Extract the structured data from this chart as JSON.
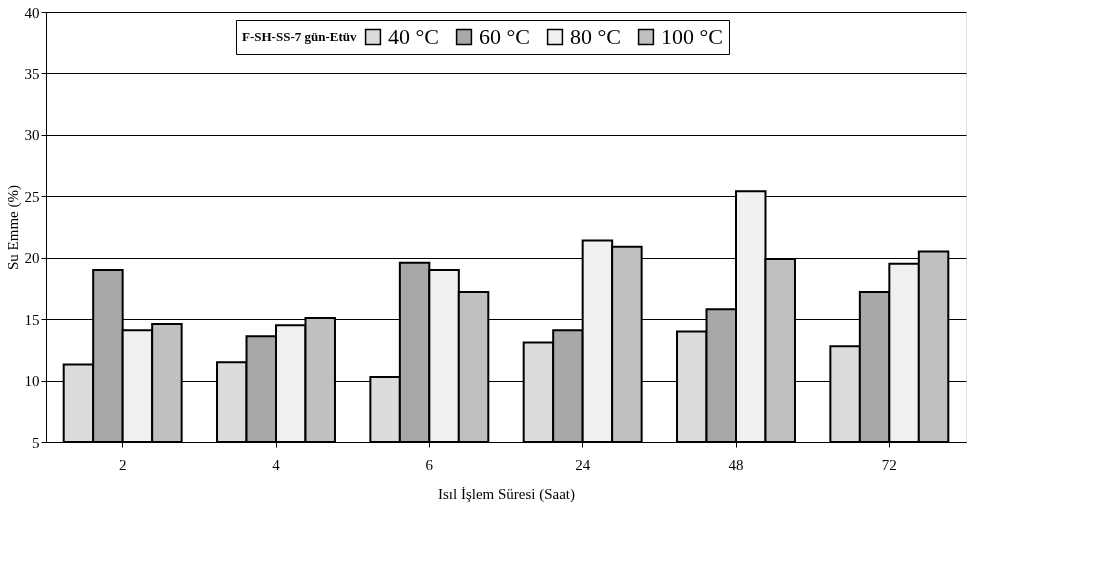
{
  "chart_data": {
    "type": "bar",
    "xlabel": "Isıl İşlem Süresi (Saat)",
    "ylabel": "Su Emme (%)",
    "legend_title": "F-SH-SS-7 gün-Etüv",
    "categories": [
      "2",
      "4",
      "6",
      "24",
      "48",
      "72"
    ],
    "series": [
      {
        "name": "40 °C",
        "color": "#dcdcdc",
        "values": [
          11.3,
          11.5,
          10.3,
          13.1,
          14.0,
          12.8
        ]
      },
      {
        "name": "60 °C",
        "color": "#a8a8a8",
        "values": [
          19.0,
          13.6,
          19.6,
          14.1,
          15.8,
          17.2
        ]
      },
      {
        "name": "80 °C",
        "color": "#f0f0f0",
        "values": [
          14.1,
          14.5,
          19.0,
          21.4,
          25.4,
          19.5
        ]
      },
      {
        "name": "100 °C",
        "color": "#c0c0c0",
        "values": [
          14.6,
          15.1,
          17.2,
          20.9,
          19.9,
          20.5
        ]
      }
    ],
    "ylim": [
      5,
      40
    ],
    "yticks": [
      5,
      10,
      15,
      20,
      25,
      30,
      35,
      40
    ],
    "grid": "y",
    "legend": "top"
  }
}
